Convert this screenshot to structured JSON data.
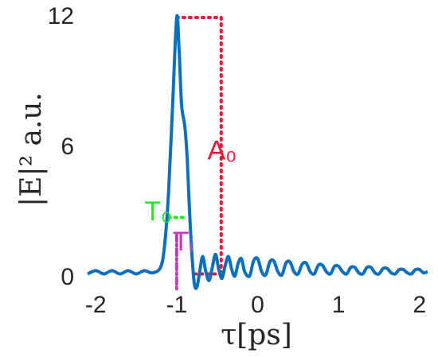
{
  "chart_data": {
    "type": "line",
    "xlabel": "τ[ps]",
    "ylabel": "|E|² a.u.",
    "xlim": [
      -2.15,
      2.13
    ],
    "ylim": [
      -0.55,
      12
    ],
    "xticks": [
      -2,
      -1,
      0,
      1,
      2
    ],
    "yticks": [
      0,
      6,
      12
    ],
    "series": [
      {
        "color": "#0b6fbd",
        "x": [
          -2.1,
          -2.0,
          -1.9,
          -1.8,
          -1.7,
          -1.6,
          -1.5,
          -1.4,
          -1.3,
          -1.2,
          -1.15,
          -1.1,
          -1.05,
          -1.0,
          -0.97,
          -0.94,
          -0.9,
          -0.87,
          -0.84,
          -0.81,
          -0.78,
          -0.75,
          -0.72,
          -0.68,
          -0.64,
          -0.6,
          -0.56,
          -0.52,
          -0.48,
          -0.44,
          -0.4,
          -0.36,
          -0.32,
          -0.28,
          -0.24,
          -0.2,
          -0.16,
          -0.1,
          -0.05,
          0.0,
          0.05,
          0.1,
          0.15,
          0.2,
          0.25,
          0.3,
          0.35,
          0.4,
          0.45,
          0.5,
          0.55,
          0.6,
          0.65,
          0.7,
          0.75,
          0.8,
          0.85,
          0.9,
          0.95,
          1.0,
          1.05,
          1.1,
          1.15,
          1.2,
          1.25,
          1.3,
          1.35,
          1.4,
          1.45,
          1.5,
          1.55,
          1.6,
          1.65,
          1.7,
          1.75,
          1.8,
          1.85,
          1.9,
          1.95,
          2.0,
          2.05,
          2.1
        ],
        "values": [
          0.2,
          0.35,
          0.2,
          0.35,
          0.2,
          0.35,
          0.2,
          0.35,
          0.25,
          0.5,
          1.5,
          4,
          8,
          12,
          10.5,
          8,
          7,
          5.5,
          3,
          1,
          -0.3,
          -0.4,
          0.2,
          1.0,
          0.3,
          -0.1,
          0.5,
          1.1,
          0.4,
          0.0,
          0.6,
          1.0,
          0.4,
          0.1,
          0.7,
          0.9,
          0.3,
          0.1,
          0.8,
          0.9,
          0.3,
          0.15,
          0.75,
          0.8,
          0.3,
          0.15,
          0.7,
          0.75,
          0.3,
          0.2,
          0.65,
          0.7,
          0.3,
          0.2,
          0.6,
          0.6,
          0.3,
          0.2,
          0.55,
          0.55,
          0.3,
          0.2,
          0.5,
          0.5,
          0.25,
          0.2,
          0.5,
          0.5,
          0.25,
          0.2,
          0.45,
          0.45,
          0.25,
          0.2,
          0.4,
          0.4,
          0.25,
          0.2,
          0.4,
          0.4,
          0.25,
          0.3
        ]
      }
    ],
    "reference_lines": [
      {
        "color": "#e6193c",
        "style": "dot",
        "x": [
          -1.0,
          -0.45
        ],
        "y": [
          12,
          12
        ]
      },
      {
        "color": "#e6193c",
        "style": "dot",
        "x": [
          -0.45,
          -0.45
        ],
        "y": [
          12,
          0.2
        ]
      },
      {
        "color": "#e6193c",
        "style": "dot",
        "x": [
          -0.78,
          -0.45
        ],
        "y": [
          0.2,
          0.2
        ]
      },
      {
        "color": "#22e622",
        "style": "dot",
        "x": [
          -1.1,
          -0.88
        ],
        "y": [
          2.8,
          2.8
        ]
      },
      {
        "color": "#c040b0",
        "style": "dashdot",
        "x": [
          -1.0,
          -1.0
        ],
        "y": [
          2.0,
          -0.55
        ]
      }
    ],
    "annotations": [
      {
        "text": "A₀",
        "x": -0.62,
        "y": 5.8,
        "color": "#e6193c"
      },
      {
        "text": "T₀",
        "x": -1.4,
        "y": 3.0,
        "color": "#22e622"
      },
      {
        "text": "Tᵢ",
        "x": -1.05,
        "y": 1.6,
        "color": "#c040b0"
      }
    ]
  }
}
